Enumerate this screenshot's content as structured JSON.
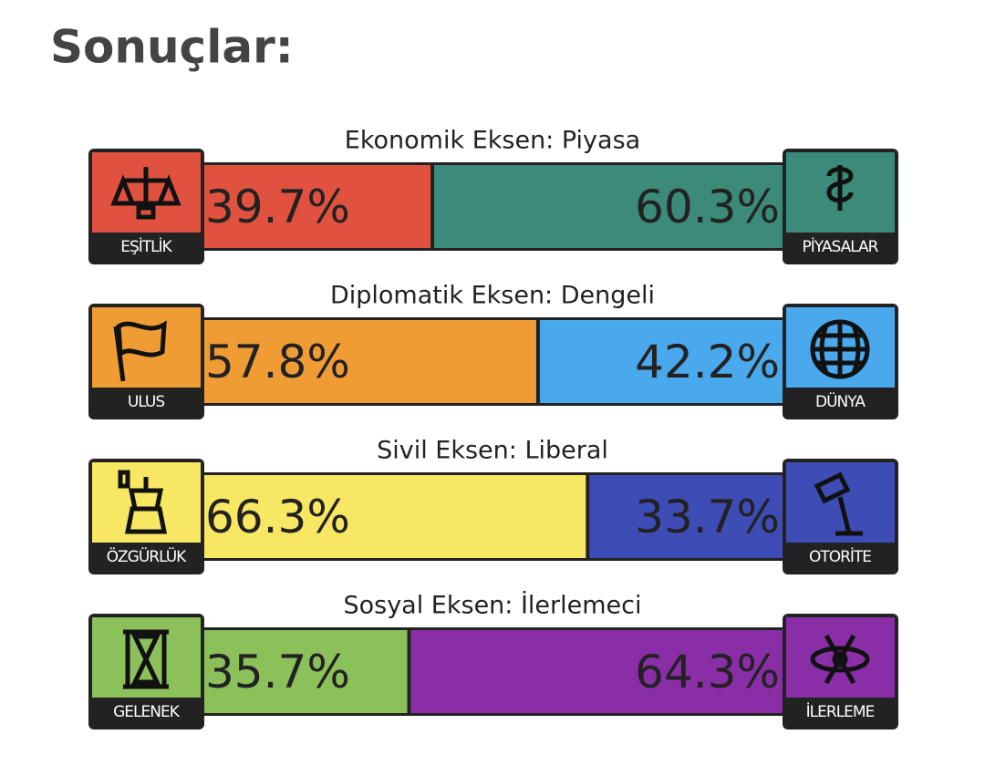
{
  "title": "Sonuçlar:",
  "axes": [
    {
      "title": "Ekonomik Eksen: Piyasa",
      "left": {
        "label": "EŞİTLİK",
        "value": 39.7,
        "value_label": "39.7%",
        "color": "#e0523f"
      },
      "right": {
        "label": "PİYASALAR",
        "value": 60.3,
        "value_label": "60.3%",
        "color": "#3b8a7a"
      }
    },
    {
      "title": "Diplomatik Eksen: Dengeli",
      "left": {
        "label": "ULUS",
        "value": 57.8,
        "value_label": "57.8%",
        "color": "#f09c34"
      },
      "right": {
        "label": "DÜNYA",
        "value": 42.2,
        "value_label": "42.2%",
        "color": "#4aa8ec"
      }
    },
    {
      "title": "Sivil Eksen: Liberal",
      "left": {
        "label": "ÖZGÜRLÜK",
        "value": 66.3,
        "value_label": "66.3%",
        "color": "#f8e762"
      },
      "right": {
        "label": "OTORİTE",
        "value": 33.7,
        "value_label": "33.7%",
        "color": "#3d4db5"
      }
    },
    {
      "title": "Sosyal Eksen: İlerlemeci",
      "left": {
        "label": "GELENEK",
        "value": 35.7,
        "value_label": "35.7%",
        "color": "#8cc05a"
      },
      "right": {
        "label": "İLERLEME",
        "value": 64.3,
        "value_label": "64.3%",
        "color": "#8a2ea8"
      }
    }
  ]
}
